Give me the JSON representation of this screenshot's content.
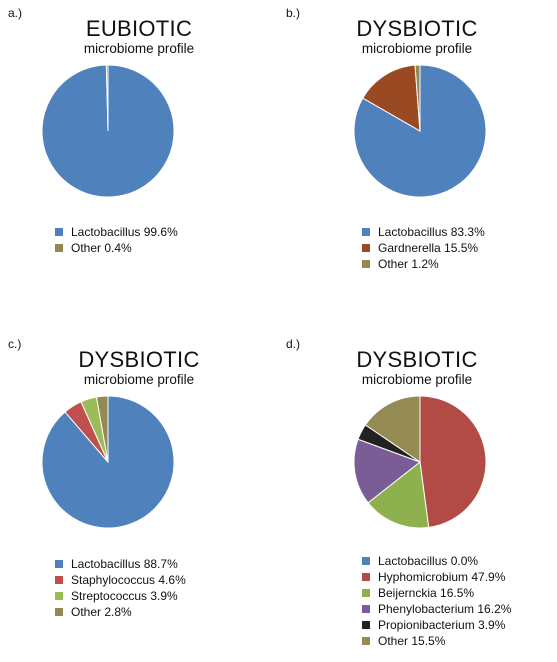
{
  "chart_data": [
    {
      "type": "pie",
      "panel_label": "a.)",
      "title": "EUBIOTIC",
      "subtitle": "microbiome profile",
      "legend_placement": "bottom",
      "series": [
        {
          "name": "Lactobacillus 99.6%",
          "value": 99.6,
          "color": "#4f81bd"
        },
        {
          "name": "Other 0.4%",
          "value": 0.4,
          "color": "#938953"
        }
      ]
    },
    {
      "type": "pie",
      "panel_label": "b.)",
      "title": "DYSBIOTIC",
      "subtitle": "microbiome profile",
      "legend_placement": "bottom",
      "series": [
        {
          "name": "Lactobacillus 83.3%",
          "value": 83.3,
          "color": "#4f81bd"
        },
        {
          "name": "Gardnerella 15.5%",
          "value": 15.5,
          "color": "#9a4a22"
        },
        {
          "name": "Other 1.2%",
          "value": 1.2,
          "color": "#938953"
        }
      ]
    },
    {
      "type": "pie",
      "panel_label": "c.)",
      "title": "DYSBIOTIC",
      "subtitle": "microbiome profile",
      "legend_placement": "bottom",
      "series": [
        {
          "name": "Lactobacillus 88.7%",
          "value": 88.7,
          "color": "#4f81bd"
        },
        {
          "name": "Staphylococcus 4.6%",
          "value": 4.6,
          "color": "#c0504d"
        },
        {
          "name": "Streptococcus 3.9%",
          "value": 3.9,
          "color": "#9bbb59"
        },
        {
          "name": "Other 2.8%",
          "value": 2.8,
          "color": "#938953"
        }
      ]
    },
    {
      "type": "pie",
      "panel_label": "d.)",
      "title": "DYSBIOTIC",
      "subtitle": "microbiome profile",
      "legend_placement": "bottom",
      "series": [
        {
          "name": "Lactobacillus 0.0%",
          "value": 0.0,
          "color": "#4f81bd"
        },
        {
          "name": "Hyphomicrobium 47.9%",
          "value": 47.9,
          "color": "#b24a45"
        },
        {
          "name": "Beijernckia 16.5%",
          "value": 16.5,
          "color": "#8fb04f"
        },
        {
          "name": "Phenylobacterium 16.2%",
          "value": 16.2,
          "color": "#7a5d96"
        },
        {
          "name": "Propionibacterium 3.9%",
          "value": 3.9,
          "color": "#222222"
        },
        {
          "name": "Other 15.5%",
          "value": 15.5,
          "color": "#948a54"
        }
      ]
    }
  ]
}
